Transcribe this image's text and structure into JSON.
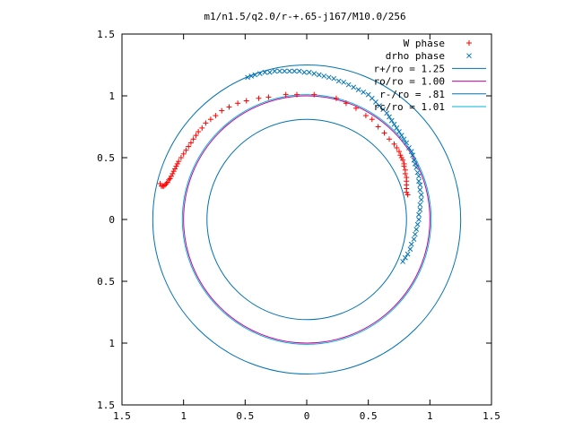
{
  "chart_data": {
    "type": "scatter",
    "title": "m1/n1.5/q2.0/r-+.65-j167/M10.0/256",
    "xlabel": "",
    "ylabel": "",
    "xlim": [
      -1.5,
      1.5
    ],
    "ylim": [
      -1.5,
      1.5
    ],
    "x_ticks": [
      -1.5,
      -1,
      -0.5,
      0,
      0.5,
      1,
      1.5
    ],
    "x_tick_labels": [
      "1.5",
      "1",
      "0.5",
      "0",
      "0.5",
      "1",
      "1.5"
    ],
    "y_ticks": [
      1.5,
      1,
      0.5,
      0,
      -0.5,
      -1,
      -1.5
    ],
    "y_tick_labels": [
      "1.5",
      "1",
      "0.5",
      "0",
      "0.5",
      "1",
      "1.5"
    ],
    "grid": false,
    "legend_position": "top-right",
    "series": [
      {
        "name": "W phase",
        "kind": "points",
        "marker": "plus",
        "color": "#ff0000",
        "points": [
          [
            -1.19,
            0.29
          ],
          [
            -1.18,
            0.27
          ],
          [
            -1.17,
            0.27
          ],
          [
            -1.16,
            0.27
          ],
          [
            -1.15,
            0.28
          ],
          [
            -1.14,
            0.29
          ],
          [
            -1.13,
            0.3
          ],
          [
            -1.12,
            0.32
          ],
          [
            -1.11,
            0.33
          ],
          [
            -1.1,
            0.35
          ],
          [
            -1.09,
            0.37
          ],
          [
            -1.08,
            0.39
          ],
          [
            -1.07,
            0.41
          ],
          [
            -1.06,
            0.43
          ],
          [
            -1.05,
            0.45
          ],
          [
            -1.04,
            0.47
          ],
          [
            -1.02,
            0.5
          ],
          [
            -1.0,
            0.53
          ],
          [
            -0.98,
            0.56
          ],
          [
            -0.96,
            0.59
          ],
          [
            -0.94,
            0.62
          ],
          [
            -0.92,
            0.65
          ],
          [
            -0.9,
            0.68
          ],
          [
            -0.88,
            0.71
          ],
          [
            -0.85,
            0.74
          ],
          [
            -0.82,
            0.78
          ],
          [
            -0.78,
            0.81
          ],
          [
            -0.74,
            0.84
          ],
          [
            -0.69,
            0.88
          ],
          [
            -0.63,
            0.91
          ],
          [
            -0.56,
            0.94
          ],
          [
            -0.49,
            0.96
          ],
          [
            -0.39,
            0.98
          ],
          [
            -0.31,
            0.99
          ],
          [
            -0.17,
            1.01
          ],
          [
            -0.08,
            1.01
          ],
          [
            0.06,
            1.01
          ],
          [
            0.24,
            0.98
          ],
          [
            0.32,
            0.94
          ],
          [
            0.4,
            0.9
          ],
          [
            0.48,
            0.84
          ],
          [
            0.53,
            0.81
          ],
          [
            0.58,
            0.75
          ],
          [
            0.63,
            0.7
          ],
          [
            0.67,
            0.65
          ],
          [
            0.71,
            0.61
          ],
          [
            0.73,
            0.58
          ],
          [
            0.75,
            0.55
          ],
          [
            0.76,
            0.52
          ],
          [
            0.77,
            0.5
          ],
          [
            0.78,
            0.48
          ],
          [
            0.79,
            0.45
          ],
          [
            0.79,
            0.43
          ],
          [
            0.8,
            0.4
          ],
          [
            0.8,
            0.37
          ],
          [
            0.81,
            0.34
          ],
          [
            0.81,
            0.31
          ],
          [
            0.81,
            0.28
          ],
          [
            0.81,
            0.25
          ],
          [
            0.81,
            0.22
          ],
          [
            0.82,
            0.2
          ]
        ]
      },
      {
        "name": "drho phase",
        "kind": "points",
        "marker": "cross",
        "color": "#0072b2",
        "points": [
          [
            -0.48,
            1.15
          ],
          [
            -0.45,
            1.16
          ],
          [
            -0.42,
            1.17
          ],
          [
            -0.38,
            1.18
          ],
          [
            -0.34,
            1.19
          ],
          [
            -0.3,
            1.19
          ],
          [
            -0.26,
            1.2
          ],
          [
            -0.22,
            1.2
          ],
          [
            -0.18,
            1.2
          ],
          [
            -0.14,
            1.2
          ],
          [
            -0.1,
            1.2
          ],
          [
            -0.06,
            1.2
          ],
          [
            -0.02,
            1.19
          ],
          [
            0.02,
            1.19
          ],
          [
            0.06,
            1.18
          ],
          [
            0.1,
            1.17
          ],
          [
            0.14,
            1.16
          ],
          [
            0.18,
            1.15
          ],
          [
            0.22,
            1.14
          ],
          [
            0.26,
            1.12
          ],
          [
            0.3,
            1.11
          ],
          [
            0.34,
            1.09
          ],
          [
            0.38,
            1.07
          ],
          [
            0.42,
            1.05
          ],
          [
            0.46,
            1.03
          ],
          [
            0.5,
            1.01
          ],
          [
            0.53,
            0.98
          ],
          [
            0.56,
            0.95
          ],
          [
            0.59,
            0.92
          ],
          [
            0.62,
            0.89
          ],
          [
            0.65,
            0.86
          ],
          [
            0.67,
            0.83
          ],
          [
            0.69,
            0.8
          ],
          [
            0.71,
            0.77
          ],
          [
            0.73,
            0.74
          ],
          [
            0.75,
            0.71
          ],
          [
            0.77,
            0.68
          ],
          [
            0.79,
            0.65
          ],
          [
            0.81,
            0.62
          ],
          [
            0.83,
            0.58
          ],
          [
            0.85,
            0.55
          ],
          [
            0.86,
            0.52
          ],
          [
            0.87,
            0.48
          ],
          [
            0.88,
            0.45
          ],
          [
            0.89,
            0.42
          ],
          [
            0.9,
            0.38
          ],
          [
            0.91,
            0.35
          ],
          [
            0.91,
            0.31
          ],
          [
            0.92,
            0.28
          ],
          [
            0.92,
            0.24
          ],
          [
            0.93,
            0.2
          ],
          [
            0.93,
            0.16
          ],
          [
            0.92,
            0.12
          ],
          [
            0.92,
            0.08
          ],
          [
            0.91,
            0.04
          ],
          [
            0.91,
            0.0
          ],
          [
            0.9,
            -0.04
          ],
          [
            0.89,
            -0.08
          ],
          [
            0.88,
            -0.12
          ],
          [
            0.87,
            -0.16
          ],
          [
            0.85,
            -0.2
          ],
          [
            0.84,
            -0.24
          ],
          [
            0.82,
            -0.28
          ],
          [
            0.8,
            -0.31
          ],
          [
            0.78,
            -0.34
          ]
        ]
      },
      {
        "name": "r+/ro = 1.25",
        "kind": "circle",
        "radius": 1.25,
        "color": "#0072b2"
      },
      {
        "name": "ro/ro = 1.00",
        "kind": "circle",
        "radius": 1.0,
        "color": "#cc0099"
      },
      {
        "name": "r-/ro = .81",
        "kind": "circle",
        "radius": 0.81,
        "color": "#0072b2"
      },
      {
        "name": "rc/ro = 1.01",
        "kind": "circle",
        "radius": 1.01,
        "color": "#00b4d8"
      }
    ]
  }
}
